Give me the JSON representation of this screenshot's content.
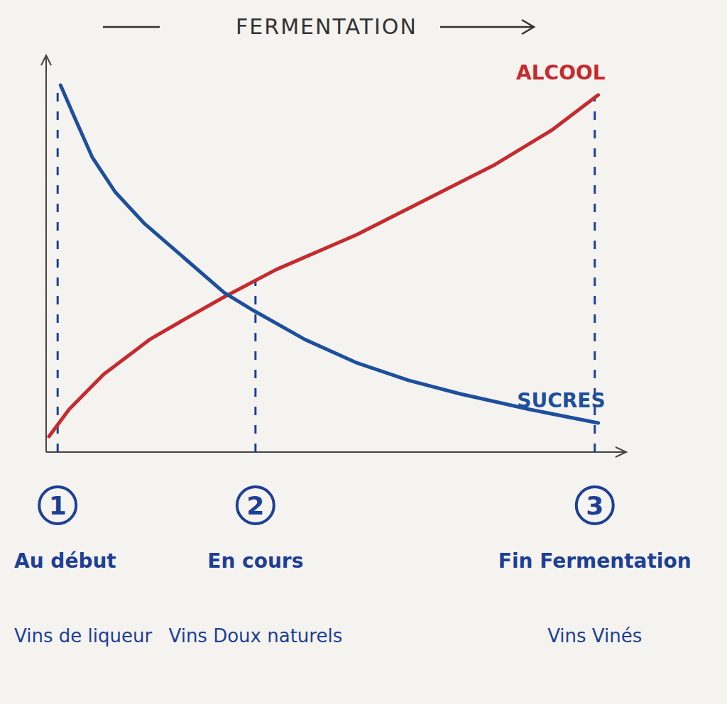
{
  "chart_data": {
    "type": "line",
    "title": "FERMENTATION",
    "xlim": [
      0,
      100
    ],
    "ylim": [
      0,
      100
    ],
    "xticks": [],
    "yticks": [],
    "tick_labels": false,
    "grid": false,
    "series": [
      {
        "name": "ALCOOL",
        "color": "#c62a2f",
        "x": [
          0.5,
          4,
          10,
          18,
          25,
          31,
          40,
          54,
          66,
          78,
          88,
          96
        ],
        "values": [
          4,
          11,
          20,
          29,
          35,
          40,
          47,
          56,
          65,
          74,
          83,
          92
        ]
      },
      {
        "name": "SUCRES",
        "color": "#1d4f9c",
        "x": [
          2.5,
          5,
          8,
          12,
          17,
          24,
          31,
          36,
          45,
          54,
          63,
          72,
          84,
          96
        ],
        "values": [
          94.5,
          86,
          76,
          67,
          59,
          50,
          41,
          36.5,
          29,
          23,
          18.5,
          15,
          11,
          7.5
        ]
      }
    ],
    "annotations": [
      {
        "x": 2,
        "number": 1,
        "label": "Au début",
        "sublabel": "Vins de liqueur"
      },
      {
        "x": 36.4,
        "number": 2,
        "label": "En cours",
        "sublabel": "Vins Doux naturels"
      },
      {
        "x": 95.4,
        "number": 3,
        "label": "Fin Fermentation",
        "sublabel": "Vins Vinés"
      }
    ]
  }
}
